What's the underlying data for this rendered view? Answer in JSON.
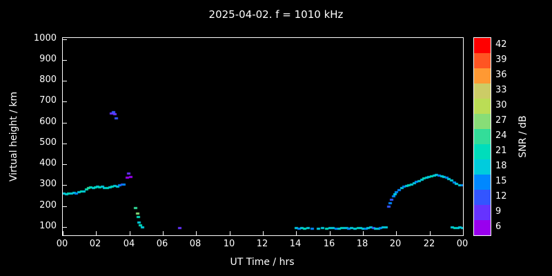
{
  "background": "#000000",
  "text_color": "#ffffff",
  "chart_data": {
    "type": "scatter",
    "title": "2025-04-02. f = 1010 kHz",
    "xlabel": "UT Time / hrs",
    "ylabel": "Virtual height / km",
    "xlim": [
      0,
      24
    ],
    "ylim": [
      60,
      1005
    ],
    "x_ticks": [
      0,
      2,
      4,
      6,
      8,
      10,
      12,
      14,
      16,
      18,
      20,
      22,
      24
    ],
    "x_tick_labels": [
      "00",
      "02",
      "04",
      "06",
      "08",
      "10",
      "12",
      "14",
      "16",
      "18",
      "20",
      "22",
      "00"
    ],
    "y_ticks": [
      100,
      200,
      300,
      400,
      500,
      600,
      700,
      800,
      900,
      1000
    ],
    "grid": false,
    "colorbar": {
      "label": "SNR / dB",
      "levels": [
        6,
        9,
        12,
        15,
        18,
        21,
        24,
        27,
        30,
        33,
        36,
        39,
        42
      ],
      "colors": [
        "#9900ee",
        "#6633ff",
        "#3355ff",
        "#0088ff",
        "#00ccdd",
        "#00ddbb",
        "#33dd99",
        "#88dd77",
        "#bbdd55",
        "#cccc66",
        "#ff9933",
        "#ff5522",
        "#ff0000"
      ]
    },
    "points_format": [
      "ut_hours",
      "virtual_height_km",
      "snr_db"
    ],
    "points": [
      [
        0.05,
        262,
        18
      ],
      [
        0.2,
        258,
        18
      ],
      [
        0.35,
        262,
        21
      ],
      [
        0.5,
        260,
        18
      ],
      [
        0.65,
        265,
        18
      ],
      [
        0.8,
        263,
        15
      ],
      [
        0.95,
        268,
        18
      ],
      [
        1.1,
        270,
        21
      ],
      [
        1.25,
        272,
        18
      ],
      [
        1.4,
        280,
        21
      ],
      [
        1.55,
        287,
        24
      ],
      [
        1.65,
        291,
        21
      ],
      [
        1.8,
        289,
        18
      ],
      [
        1.95,
        292,
        21
      ],
      [
        2.05,
        295,
        18
      ],
      [
        2.2,
        291,
        21
      ],
      [
        2.35,
        294,
        18
      ],
      [
        2.5,
        289,
        18
      ],
      [
        2.65,
        287,
        21
      ],
      [
        2.8,
        292,
        18
      ],
      [
        2.95,
        296,
        21
      ],
      [
        3.1,
        299,
        18
      ],
      [
        3.25,
        296,
        18
      ],
      [
        3.4,
        301,
        15
      ],
      [
        3.55,
        306,
        12
      ],
      [
        3.65,
        303,
        15
      ],
      [
        2.9,
        645,
        9
      ],
      [
        3.0,
        650,
        12
      ],
      [
        3.1,
        640,
        9
      ],
      [
        3.2,
        622,
        12
      ],
      [
        3.85,
        338,
        6
      ],
      [
        3.95,
        357,
        9
      ],
      [
        4.05,
        342,
        6
      ],
      [
        4.35,
        192,
        24
      ],
      [
        4.45,
        165,
        27
      ],
      [
        4.5,
        148,
        21
      ],
      [
        4.55,
        122,
        18
      ],
      [
        4.65,
        108,
        21
      ],
      [
        4.75,
        100,
        18
      ],
      [
        7.0,
        95,
        9
      ],
      [
        14.0,
        95,
        18
      ],
      [
        14.15,
        93,
        15
      ],
      [
        14.3,
        97,
        18
      ],
      [
        14.5,
        94,
        21
      ],
      [
        14.7,
        96,
        18
      ],
      [
        14.95,
        94,
        15
      ],
      [
        15.3,
        92,
        18
      ],
      [
        15.55,
        95,
        18
      ],
      [
        15.8,
        93,
        21
      ],
      [
        16.0,
        95,
        18
      ],
      [
        16.2,
        97,
        18
      ],
      [
        16.4,
        94,
        15
      ],
      [
        16.55,
        92,
        18
      ],
      [
        16.7,
        95,
        21
      ],
      [
        16.85,
        96,
        18
      ],
      [
        17.0,
        97,
        18
      ],
      [
        17.15,
        93,
        15
      ],
      [
        17.3,
        95,
        18
      ],
      [
        17.5,
        94,
        18
      ],
      [
        17.7,
        97,
        21
      ],
      [
        17.85,
        95,
        18
      ],
      [
        18.0,
        92,
        18
      ],
      [
        18.15,
        94,
        15
      ],
      [
        18.3,
        96,
        18
      ],
      [
        18.45,
        99,
        18
      ],
      [
        18.6,
        95,
        12
      ],
      [
        18.75,
        93,
        18
      ],
      [
        18.9,
        94,
        18
      ],
      [
        19.05,
        96,
        15
      ],
      [
        19.2,
        98,
        18
      ],
      [
        19.35,
        101,
        18
      ],
      [
        19.55,
        200,
        12
      ],
      [
        19.6,
        215,
        15
      ],
      [
        19.7,
        232,
        12
      ],
      [
        19.8,
        248,
        15
      ],
      [
        19.9,
        258,
        18
      ],
      [
        20.0,
        268,
        15
      ],
      [
        20.15,
        278,
        15
      ],
      [
        20.3,
        288,
        18
      ],
      [
        20.45,
        293,
        15
      ],
      [
        20.6,
        297,
        18
      ],
      [
        20.75,
        301,
        21
      ],
      [
        20.9,
        305,
        18
      ],
      [
        21.05,
        312,
        18
      ],
      [
        21.2,
        317,
        15
      ],
      [
        21.35,
        322,
        18
      ],
      [
        21.5,
        329,
        18
      ],
      [
        21.65,
        334,
        21
      ],
      [
        21.8,
        338,
        18
      ],
      [
        21.95,
        341,
        18
      ],
      [
        22.1,
        345,
        21
      ],
      [
        22.25,
        348,
        18
      ],
      [
        22.4,
        350,
        18
      ],
      [
        22.55,
        347,
        15
      ],
      [
        22.7,
        345,
        18
      ],
      [
        22.85,
        342,
        18
      ],
      [
        23.0,
        338,
        15
      ],
      [
        23.15,
        331,
        18
      ],
      [
        23.3,
        323,
        18
      ],
      [
        23.45,
        315,
        15
      ],
      [
        23.6,
        309,
        18
      ],
      [
        23.8,
        302,
        18
      ],
      [
        23.95,
        300,
        15
      ],
      [
        23.35,
        100,
        18
      ],
      [
        23.5,
        97,
        21
      ],
      [
        23.65,
        95,
        18
      ],
      [
        23.8,
        99,
        18
      ],
      [
        23.95,
        96,
        18
      ]
    ]
  }
}
